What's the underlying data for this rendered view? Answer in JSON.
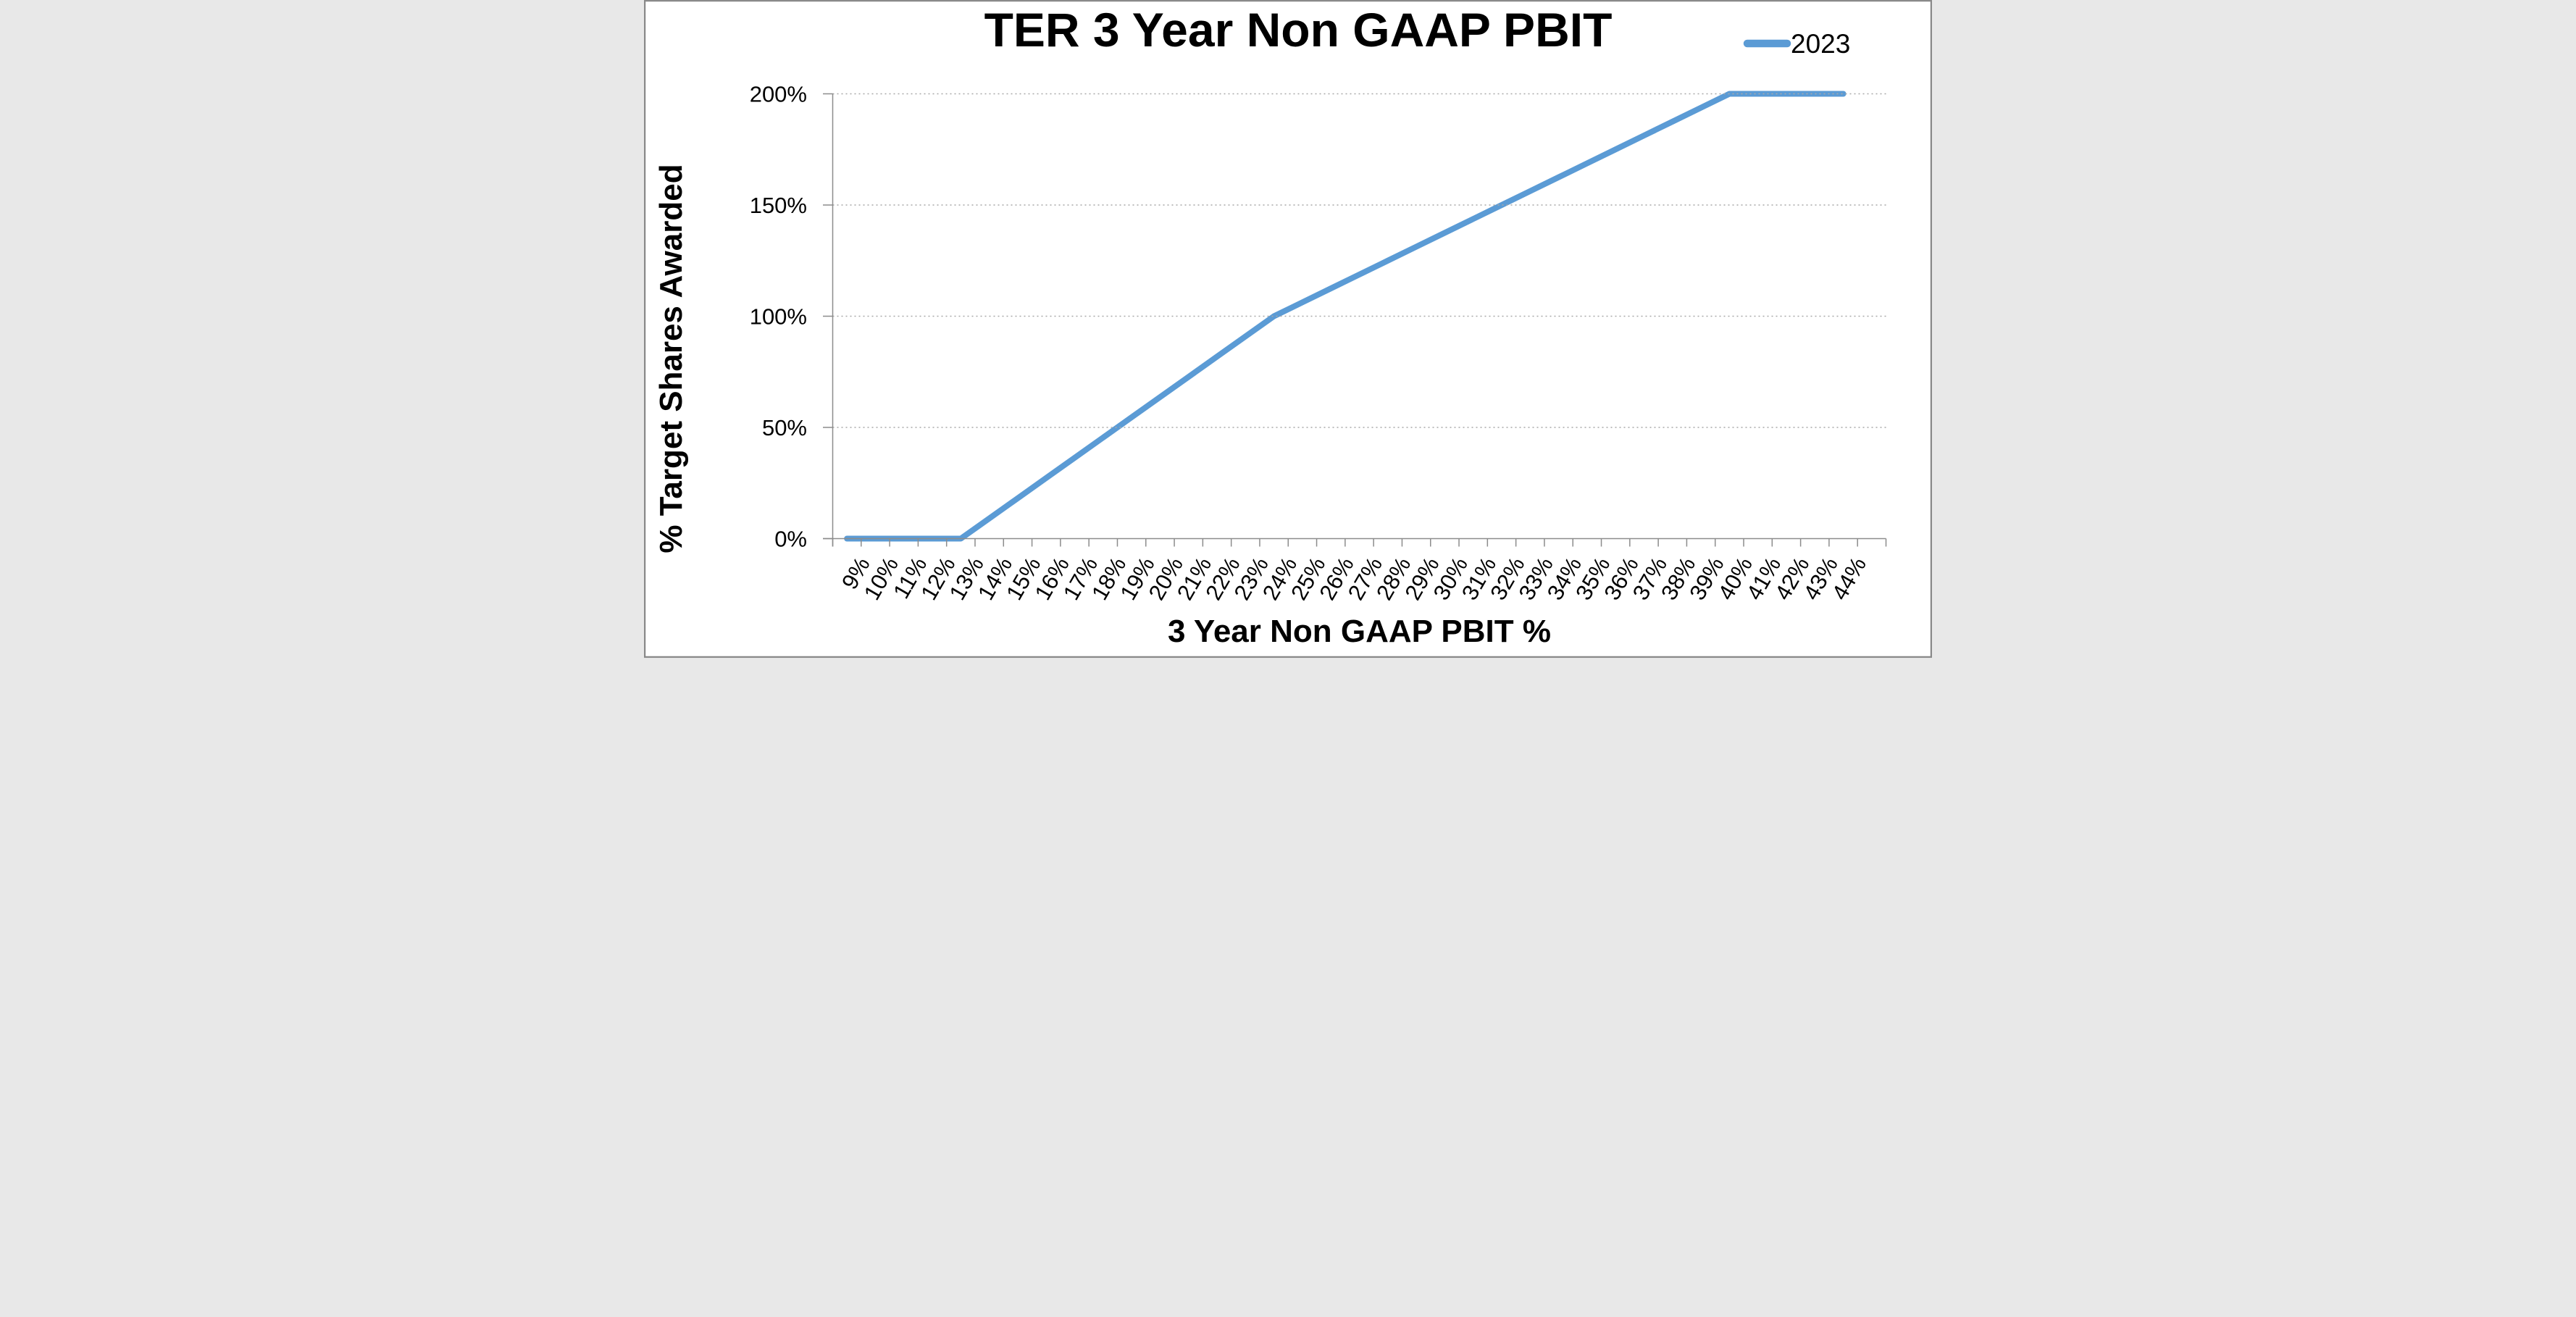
{
  "window": {
    "background": "#ffffff",
    "border_color": "#8a8a8a"
  },
  "chart_data": {
    "type": "line",
    "title": "TER 3 Year Non GAAP PBIT",
    "xlabel": "3 Year Non GAAP PBIT %",
    "ylabel": "% Target Shares Awarded",
    "categories": [
      "9%",
      "10%",
      "11%",
      "12%",
      "13%",
      "14%",
      "15%",
      "16%",
      "17%",
      "18%",
      "19%",
      "20%",
      "21%",
      "22%",
      "23%",
      "24%",
      "25%",
      "26%",
      "27%",
      "28%",
      "29%",
      "30%",
      "31%",
      "32%",
      "33%",
      "34%",
      "35%",
      "36%",
      "37%",
      "38%",
      "39%",
      "40%",
      "41%",
      "42%",
      "43%",
      "44%"
    ],
    "series": [
      {
        "name": "2023",
        "color": "#5B9BD5",
        "values": [
          0,
          0,
          0,
          0,
          0,
          9.09,
          18.18,
          27.27,
          36.36,
          45.45,
          54.55,
          63.64,
          72.73,
          81.82,
          90.91,
          100,
          106.25,
          112.5,
          118.75,
          125,
          131.25,
          137.5,
          143.75,
          150,
          156.25,
          162.5,
          168.75,
          175,
          181.25,
          187.5,
          193.75,
          200,
          200,
          200,
          200,
          200
        ]
      }
    ],
    "ylim": [
      0,
      200
    ],
    "y_tick_values": [
      0,
      50,
      100,
      150,
      200
    ],
    "y_tick_labels": [
      "0%",
      "50%",
      "100%",
      "150%",
      "200%"
    ],
    "x_tick_rotation_deg": -60,
    "grid": "horizontal-dotted",
    "gridline_color": "#a8a8a8",
    "axis_color": "#8c8c8c",
    "legend_position": "top-right",
    "legend_entries": [
      "2023"
    ]
  }
}
